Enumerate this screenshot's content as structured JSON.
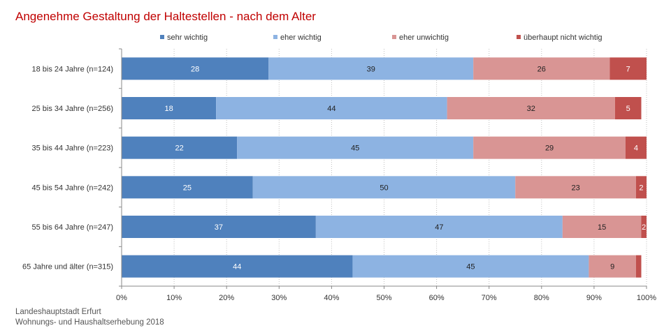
{
  "chart_data": {
    "type": "bar",
    "orientation": "horizontal",
    "stacked": true,
    "title": "Angenehme Gestaltung der Haltestellen - nach dem Alter",
    "categories": [
      "18 bis 24 Jahre (n=124)",
      "25 bis 34 Jahre (n=256)",
      "35 bis 44 Jahre (n=223)",
      "45 bis 54 Jahre (n=242)",
      "55 bis 64 Jahre (n=247)",
      "65 Jahre und älter (n=315)"
    ],
    "series": [
      {
        "name": "sehr wichtig",
        "color": "#4f81bd",
        "label_color": "#ffffff",
        "values": [
          28,
          18,
          22,
          25,
          37,
          44
        ]
      },
      {
        "name": "eher wichtig",
        "color": "#8db3e2",
        "label_color": "#222222",
        "values": [
          39,
          44,
          45,
          50,
          47,
          45
        ]
      },
      {
        "name": "eher unwichtig",
        "color": "#d99594",
        "label_color": "#222222",
        "values": [
          26,
          32,
          29,
          23,
          15,
          9
        ]
      },
      {
        "name": "überhaupt nicht wichtig",
        "color": "#c0504d",
        "label_color": "#ffffff",
        "values": [
          7,
          5,
          4,
          2,
          2,
          1
        ]
      }
    ],
    "value_labels": [
      [
        "28",
        "18",
        "22",
        "25",
        "37",
        "44"
      ],
      [
        "39",
        "44",
        "45",
        "50",
        "47",
        "45"
      ],
      [
        "26",
        "32",
        "29",
        "23",
        "15",
        "9"
      ],
      [
        "7",
        "5",
        "4",
        "2",
        "2",
        ""
      ]
    ],
    "xlim": [
      0,
      100
    ],
    "xticks": [
      0,
      10,
      20,
      30,
      40,
      50,
      60,
      70,
      80,
      90,
      100
    ],
    "xtick_labels": [
      "0%",
      "10%",
      "20%",
      "30%",
      "40%",
      "50%",
      "60%",
      "70%",
      "80%",
      "90%",
      "100%"
    ],
    "grid": true,
    "legend_position": "top"
  },
  "source": {
    "line1": "Landeshauptstadt Erfurt",
    "line2": "Wohnungs- und Haushaltserhebung 2018"
  }
}
